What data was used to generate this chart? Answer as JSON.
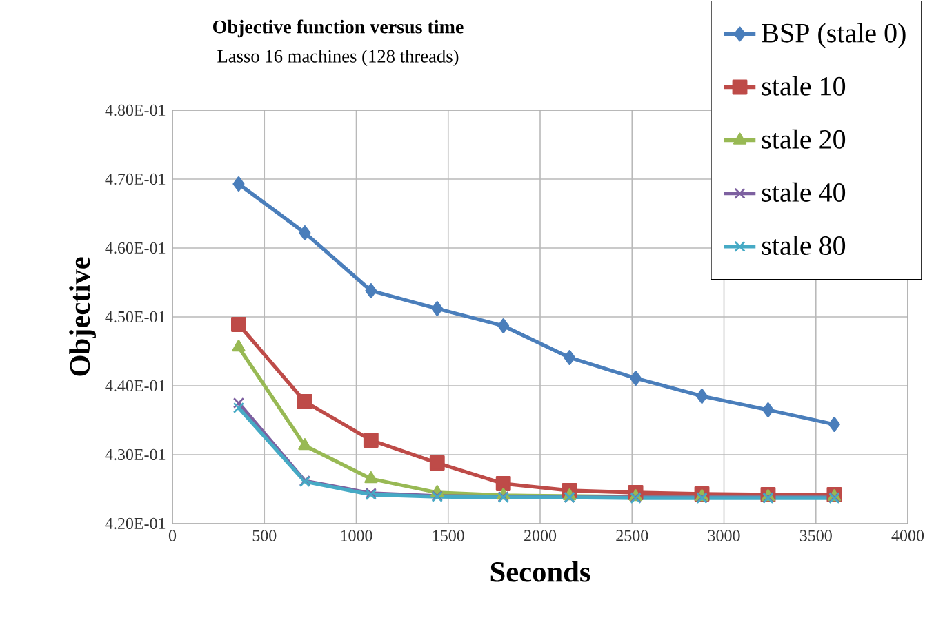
{
  "chart_data": {
    "type": "line",
    "title": "Objective function versus time",
    "subtitle": "Lasso 16 machines (128 threads)",
    "xlabel": "Seconds",
    "ylabel": "Objective",
    "x": [
      360,
      720,
      1080,
      1440,
      1800,
      2160,
      2520,
      2880,
      3240,
      3600
    ],
    "xlim": [
      0,
      4000
    ],
    "xticks": [
      0,
      500,
      1000,
      1500,
      2000,
      2500,
      3000,
      3500,
      4000
    ],
    "ylim": [
      0.42,
      0.48
    ],
    "yticks": [
      {
        "value": 0.42,
        "label": "4.20E-01"
      },
      {
        "value": 0.43,
        "label": "4.30E-01"
      },
      {
        "value": 0.44,
        "label": "4.40E-01"
      },
      {
        "value": 0.45,
        "label": "4.50E-01"
      },
      {
        "value": 0.46,
        "label": "4.60E-01"
      },
      {
        "value": 0.47,
        "label": "4.70E-01"
      },
      {
        "value": 0.48,
        "label": "4.80E-01"
      }
    ],
    "grid": true,
    "legend": "top right",
    "line_style": "solid",
    "series": [
      {
        "name": "BSP (stale 0)",
        "color": "#4a7ebb",
        "marker": "diamond",
        "values": [
          0.4693,
          0.4622,
          0.4538,
          0.4512,
          0.4487,
          0.4441,
          0.4411,
          0.4385,
          0.4365,
          0.4344
        ]
      },
      {
        "name": "stale 10",
        "color": "#be4b48",
        "marker": "square",
        "values": [
          0.4489,
          0.4377,
          0.4321,
          0.4288,
          0.4258,
          0.4248,
          0.4245,
          0.4243,
          0.4242,
          0.4242
        ]
      },
      {
        "name": "stale 20",
        "color": "#98b954",
        "marker": "triangle",
        "values": [
          0.4456,
          0.4313,
          0.4265,
          0.4245,
          0.4241,
          0.424,
          0.4239,
          0.4239,
          0.4239,
          0.4239
        ]
      },
      {
        "name": "stale 40",
        "color": "#7d60a0",
        "marker": "cross",
        "values": [
          0.4375,
          0.4262,
          0.4244,
          0.424,
          0.4239,
          0.4238,
          0.4238,
          0.4238,
          0.4238,
          0.4238
        ]
      },
      {
        "name": "stale 80",
        "color": "#46aac5",
        "marker": "cross",
        "values": [
          0.4368,
          0.4261,
          0.4242,
          0.4239,
          0.4238,
          0.4238,
          0.4237,
          0.4237,
          0.4237,
          0.4237
        ]
      }
    ]
  }
}
